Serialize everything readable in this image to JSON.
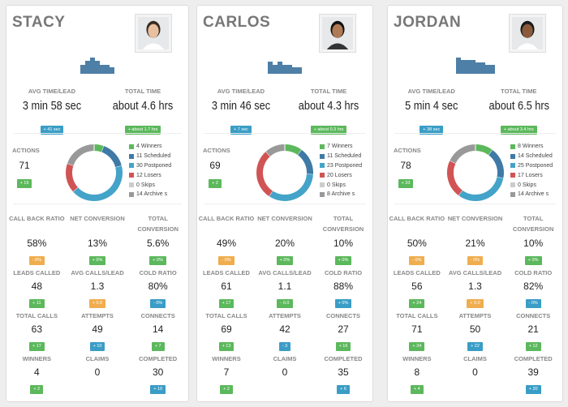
{
  "agents": [
    {
      "name": "STACY",
      "activity_bars": [
        0.55,
        0.8,
        1.0,
        0.8,
        0.55,
        0.55,
        0.4
      ],
      "avg_time_label": "AVG TIME/LEAD",
      "avg_time": "3 min 58 sec",
      "avg_time_delta": "+ 41 sec",
      "avg_time_color": "b",
      "total_time_label": "TOTAL TIME",
      "total_time": "about 4.6 hrs",
      "total_time_delta": "+ about 1.7 hrs",
      "actions_label": "ACTIONS",
      "actions": "71",
      "actions_delta": "+ 19",
      "breakdown": [
        {
          "label": "4 Winners",
          "value": 4,
          "color": "#5cb85c"
        },
        {
          "label": "11 Scheduled",
          "value": 11,
          "color": "#3f7aa6"
        },
        {
          "label": "30 Postponed",
          "value": 30,
          "color": "#44a3c9"
        },
        {
          "label": "12 Losers",
          "value": 12,
          "color": "#d15454"
        },
        {
          "label": "0 Skips",
          "value": 0,
          "color": "#cccccc"
        },
        {
          "label": "14 Archive s",
          "value": 14,
          "color": "#999999"
        }
      ],
      "stats": [
        {
          "label": "CALL BACK RATIO",
          "value": "58%",
          "delta": "- 0%",
          "color": "o"
        },
        {
          "label": "NET CONVERSION",
          "value": "13%",
          "delta": "+ 0%",
          "color": "g"
        },
        {
          "label": "TOTAL CONVERSION",
          "value": "5.6%",
          "delta": "+ 0%",
          "color": "g"
        },
        {
          "label": "LEADS CALLED",
          "value": "48",
          "delta": "+ 11",
          "color": "g"
        },
        {
          "label": "AVG CALLS/LEAD",
          "value": "1.3",
          "delta": "+ 0.0",
          "color": "o"
        },
        {
          "label": "COLD RATIO",
          "value": "80%",
          "delta": "- 0%",
          "color": "b"
        },
        {
          "label": "TOTAL CALLS",
          "value": "63",
          "delta": "+ 17",
          "color": "g"
        },
        {
          "label": "ATTEMPTS",
          "value": "49",
          "delta": "+ 10",
          "color": "b"
        },
        {
          "label": "CONNECTS",
          "value": "14",
          "delta": "+ 7",
          "color": "g"
        },
        {
          "label": "WINNERS",
          "value": "4",
          "delta": "+ 2",
          "color": "g"
        },
        {
          "label": "CLAIMS",
          "value": "0",
          "delta": "",
          "color": ""
        },
        {
          "label": "COMPLETED",
          "value": "30",
          "delta": "+ 10",
          "color": "b"
        }
      ]
    },
    {
      "name": "CARLOS",
      "activity_bars": [
        0.75,
        0.55,
        0.75,
        0.55,
        0.55,
        0.4,
        0.4
      ],
      "avg_time_label": "AVG TIME/LEAD",
      "avg_time": "3 min 46 sec",
      "avg_time_delta": "+ 7 sec",
      "avg_time_color": "b",
      "total_time_label": "TOTAL TIME",
      "total_time": "about 4.3 hrs",
      "total_time_delta": "+ about 0.3 hrs",
      "actions_label": "ACTIONS",
      "actions": "69",
      "actions_delta": "+ 2",
      "breakdown": [
        {
          "label": "7 Winners",
          "value": 7,
          "color": "#5cb85c"
        },
        {
          "label": "11 Scheduled",
          "value": 11,
          "color": "#3f7aa6"
        },
        {
          "label": "23 Postponed",
          "value": 23,
          "color": "#44a3c9"
        },
        {
          "label": "20 Losers",
          "value": 20,
          "color": "#d15454"
        },
        {
          "label": "0 Skips",
          "value": 0,
          "color": "#cccccc"
        },
        {
          "label": "8 Archive s",
          "value": 8,
          "color": "#999999"
        }
      ],
      "stats": [
        {
          "label": "CALL BACK RATIO",
          "value": "49%",
          "delta": "- 0%",
          "color": "o"
        },
        {
          "label": "NET CONVERSION",
          "value": "20%",
          "delta": "+ 0%",
          "color": "g"
        },
        {
          "label": "TOTAL CONVERSION",
          "value": "10%",
          "delta": "+ 0%",
          "color": "g"
        },
        {
          "label": "LEADS CALLED",
          "value": "61",
          "delta": "+ 17",
          "color": "g"
        },
        {
          "label": "AVG CALLS/LEAD",
          "value": "1.1",
          "delta": "- 0.0",
          "color": "g"
        },
        {
          "label": "COLD RATIO",
          "value": "88%",
          "delta": "+ 0%",
          "color": "b"
        },
        {
          "label": "TOTAL CALLS",
          "value": "69",
          "delta": "+ 13",
          "color": "g"
        },
        {
          "label": "ATTEMPTS",
          "value": "42",
          "delta": "- 3",
          "color": "b"
        },
        {
          "label": "CONNECTS",
          "value": "27",
          "delta": "+ 16",
          "color": "g"
        },
        {
          "label": "WINNERS",
          "value": "7",
          "delta": "+ 2",
          "color": "g"
        },
        {
          "label": "CLAIMS",
          "value": "0",
          "delta": "",
          "color": ""
        },
        {
          "label": "COMPLETED",
          "value": "35",
          "delta": "+ 6",
          "color": "b"
        }
      ]
    },
    {
      "name": "JORDAN",
      "activity_bars": [
        1.0,
        0.85,
        0.85,
        0.85,
        0.7,
        0.7,
        0.55,
        0.55
      ],
      "avg_time_label": "AVG TIME/LEAD",
      "avg_time": "5 min 4 sec",
      "avg_time_delta": "+ 38 sec",
      "avg_time_color": "b",
      "total_time_label": "TOTAL TIME",
      "total_time": "about 6.5 hrs",
      "total_time_delta": "+ about 3.4 hrs",
      "actions_label": "ACTIONS",
      "actions": "78",
      "actions_delta": "+ 33",
      "breakdown": [
        {
          "label": "8 Winners",
          "value": 8,
          "color": "#5cb85c"
        },
        {
          "label": "14 Scheduled",
          "value": 14,
          "color": "#3f7aa6"
        },
        {
          "label": "25 Postponed",
          "value": 25,
          "color": "#44a3c9"
        },
        {
          "label": "17 Losers",
          "value": 17,
          "color": "#d15454"
        },
        {
          "label": "0 Skips",
          "value": 0,
          "color": "#cccccc"
        },
        {
          "label": "14 Archive s",
          "value": 14,
          "color": "#999999"
        }
      ],
      "stats": [
        {
          "label": "CALL BACK RATIO",
          "value": "50%",
          "delta": "- 0%",
          "color": "o"
        },
        {
          "label": "NET CONVERSION",
          "value": "21%",
          "delta": "- 0%",
          "color": "o"
        },
        {
          "label": "TOTAL CONVERSION",
          "value": "10%",
          "delta": "+ 0%",
          "color": "g"
        },
        {
          "label": "LEADS CALLED",
          "value": "56",
          "delta": "+ 24",
          "color": "g"
        },
        {
          "label": "AVG CALLS/LEAD",
          "value": "1.3",
          "delta": "+ 0.0",
          "color": "o"
        },
        {
          "label": "COLD RATIO",
          "value": "82%",
          "delta": "- 0%",
          "color": "b"
        },
        {
          "label": "TOTAL CALLS",
          "value": "71",
          "delta": "+ 34",
          "color": "g"
        },
        {
          "label": "ATTEMPTS",
          "value": "50",
          "delta": "+ 22",
          "color": "b"
        },
        {
          "label": "CONNECTS",
          "value": "21",
          "delta": "+ 12",
          "color": "g"
        },
        {
          "label": "WINNERS",
          "value": "8",
          "delta": "+ 4",
          "color": "g"
        },
        {
          "label": "CLAIMS",
          "value": "0",
          "delta": "",
          "color": ""
        },
        {
          "label": "COMPLETED",
          "value": "39",
          "delta": "+ 20",
          "color": "b"
        }
      ]
    }
  ]
}
